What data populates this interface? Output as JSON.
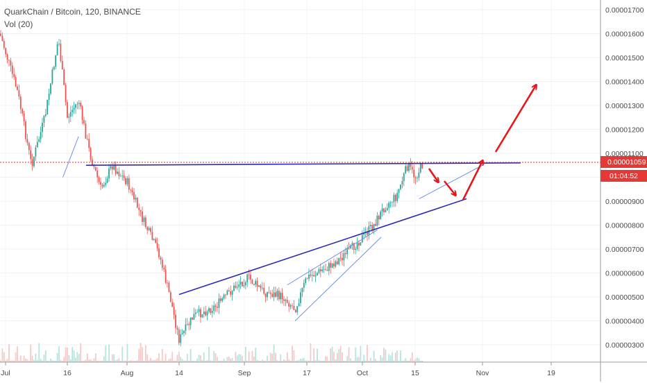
{
  "header": {
    "symbol_line": "QuarkChain / Bitcoin, 120, BINANCE",
    "volume_label": "Vol (20)"
  },
  "price_badge": {
    "price": "0.00001059",
    "countdown": "01:04:52",
    "price_color": "#e53935"
  },
  "chart_data": {
    "type": "candlestick",
    "title": "QuarkChain / Bitcoin, 120, BINANCE",
    "x_ticks": [
      "Jul",
      "16",
      "Aug",
      "14",
      "Sep",
      "17",
      "Oct",
      "15",
      "Nov",
      "19"
    ],
    "y_ticks": [
      "0.00000300",
      "0.00000400",
      "0.00000500",
      "0.00000600",
      "0.00000700",
      "0.00000800",
      "0.00000900",
      "0.00001000",
      "0.00001100",
      "0.00001200",
      "0.00001300",
      "0.00001400",
      "0.00001500",
      "0.00001600",
      "0.00001700"
    ],
    "ylim": [
      2.5e-06,
      1.72e-05
    ],
    "current_price": 1.059e-05,
    "price_path": [
      [
        "Jul",
        1.6e-05
      ],
      [
        "Jul 5",
        1.35e-05
      ],
      [
        "Jul 8",
        1.05e-05
      ],
      [
        "Jul 11",
        1.25e-05
      ],
      [
        "Jul 14",
        1.58e-05
      ],
      [
        "Jul 16",
        1.25e-05
      ],
      [
        "Jul 19",
        1.32e-05
      ],
      [
        "Jul 22",
        1.1e-05
      ],
      [
        "Jul 25",
        9.5e-06
      ],
      [
        "Jul 28",
        1.05e-05
      ],
      [
        "Aug 1",
        9.8e-06
      ],
      [
        "Aug 5",
        8.2e-06
      ],
      [
        "Aug 9",
        6.8e-06
      ],
      [
        "Aug 12",
        4.8e-06
      ],
      [
        "Aug 14",
        3.2e-06
      ],
      [
        "Aug 18",
        4.2e-06
      ],
      [
        "Aug 24",
        4.6e-06
      ],
      [
        "Aug 30",
        5.5e-06
      ],
      [
        "Sep 2",
        5.8e-06
      ],
      [
        "Sep 6",
        5.2e-06
      ],
      [
        "Sep 11",
        5e-06
      ],
      [
        "Sep 14",
        4.5e-06
      ],
      [
        "Sep 17",
        5.8e-06
      ],
      [
        "Sep 22",
        6.2e-06
      ],
      [
        "Sep 27",
        6.8e-06
      ],
      [
        "Oct 1",
        7.5e-06
      ],
      [
        "Oct 4",
        8e-06
      ],
      [
        "Oct 7",
        8.8e-06
      ],
      [
        "Oct 10",
        9.2e-06
      ],
      [
        "Oct 13",
        1.05e-05
      ],
      [
        "Oct 15",
        1e-05
      ],
      [
        "Oct 17",
        1.059e-05
      ]
    ],
    "volume_series_name": "Vol (20)",
    "annotations": {
      "resistance_line": {
        "from": [
          "Jul 21",
          1.05e-05
        ],
        "to": [
          "Nov 11",
          1.06e-05
        ],
        "color": "#2b2bb5"
      },
      "rising_support_line": {
        "from": [
          "Aug 14",
          5.1e-06
        ],
        "to": [
          "Oct 28",
          9.1e-06
        ],
        "color": "#2b2bb5"
      },
      "channel_lower": {
        "from": [
          "Sep 14",
          4e-06
        ],
        "to": [
          "Oct 6",
          7.5e-06
        ],
        "color": "#6f8fe0"
      },
      "channel_upper": {
        "from": [
          "Sep 12",
          5.5e-06
        ],
        "to": [
          "Oct 5",
          7.8e-06
        ],
        "color": "#6f8fe0"
      },
      "wedge_upper": {
        "from": [
          "Oct 16",
          9.1e-06
        ],
        "to": [
          "Nov 1",
          1.05e-05
        ],
        "color": "#6f8fe0"
      },
      "early_trend": {
        "from": [
          "Jul 15",
          1e-05
        ],
        "to": [
          "Jul 19",
          1.17e-05
        ],
        "color": "#6f8fe0"
      },
      "forecast_arrows_color": "#e8161b"
    }
  }
}
